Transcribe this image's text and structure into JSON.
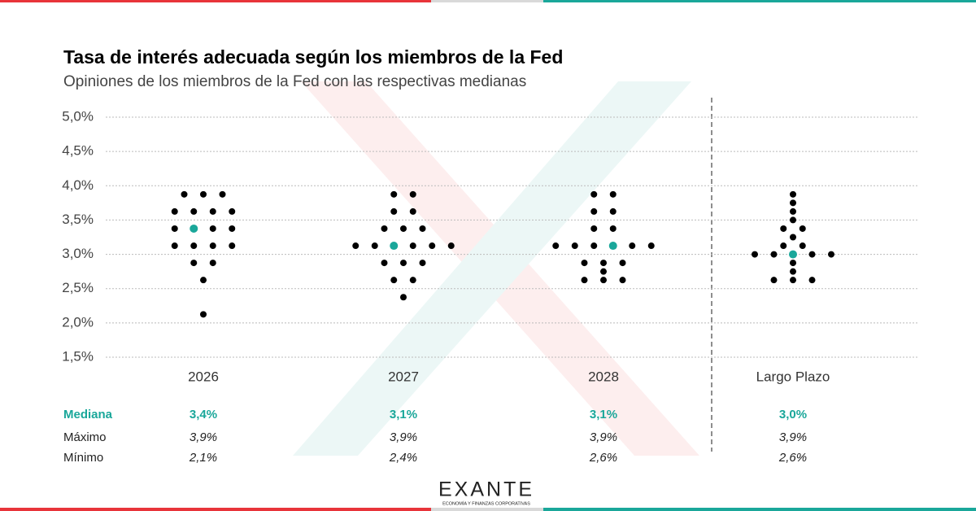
{
  "chart_data": {
    "type": "dotplot",
    "title": "Tasa de interés adecuada según los miembros de la Fed",
    "subtitle": "Opiniones de los miembros de la Fed con las respectivas medianas",
    "categories": [
      "2026",
      "2027",
      "2028",
      "Largo Plazo"
    ],
    "dot_color": "#000000",
    "highlight_color": "#1aa79a",
    "groups": [
      {
        "dots": [
          3.875,
          3.875,
          3.875,
          3.625,
          3.625,
          3.625,
          3.625,
          3.375,
          3.375,
          3.375,
          3.375,
          3.125,
          3.125,
          3.125,
          3.125,
          2.875,
          2.875,
          2.625,
          2.125
        ],
        "dot_colors": [
          "#000000",
          "#000000",
          "#000000",
          "#000000",
          "#000000",
          "#000000",
          "#000000",
          "#000000",
          "#1aa79a",
          "#000000",
          "#000000",
          "#000000",
          "#000000",
          "#000000",
          "#000000",
          "#000000",
          "#000000",
          "#000000",
          "#000000"
        ]
      },
      {
        "dots": [
          3.875,
          3.875,
          3.625,
          3.625,
          3.375,
          3.375,
          3.375,
          3.125,
          3.125,
          3.125,
          3.125,
          3.125,
          3.125,
          2.875,
          2.875,
          2.875,
          2.625,
          2.625,
          2.375
        ],
        "dot_colors": [
          "#000000",
          "#000000",
          "#000000",
          "#000000",
          "#000000",
          "#000000",
          "#000000",
          "#000000",
          "#000000",
          "#1aa79a",
          "#000000",
          "#000000",
          "#000000",
          "#000000",
          "#000000",
          "#000000",
          "#000000",
          "#000000",
          "#000000"
        ]
      },
      {
        "dots": [
          3.875,
          3.875,
          3.625,
          3.625,
          3.375,
          3.375,
          3.125,
          3.125,
          3.125,
          3.125,
          3.125,
          3.125,
          2.875,
          2.875,
          2.875,
          2.75,
          2.625,
          2.625,
          2.625
        ],
        "dot_colors": [
          "#000000",
          "#000000",
          "#000000",
          "#000000",
          "#000000",
          "#000000",
          "#000000",
          "#000000",
          "#000000",
          "#1aa79a",
          "#000000",
          "#000000",
          "#000000",
          "#000000",
          "#000000",
          "#000000",
          "#000000",
          "#000000",
          "#000000"
        ]
      },
      {
        "dots": [
          3.875,
          3.75,
          3.625,
          3.5,
          3.375,
          3.375,
          3.25,
          3.125,
          3.125,
          3.0,
          3.0,
          3.0,
          3.0,
          3.0,
          2.875,
          2.75,
          2.625,
          2.625,
          2.625
        ],
        "dot_colors": [
          "#000000",
          "#000000",
          "#000000",
          "#000000",
          "#000000",
          "#000000",
          "#000000",
          "#000000",
          "#000000",
          "#000000",
          "#000000",
          "#1aa79a",
          "#000000",
          "#000000",
          "#000000",
          "#000000",
          "#000000",
          "#000000",
          "#000000"
        ]
      }
    ],
    "ylim": [
      1.5,
      5.0
    ],
    "yticks": [
      {
        "value": 1.5,
        "label": "1,5%"
      },
      {
        "value": 2.0,
        "label": "2,0%"
      },
      {
        "value": 2.5,
        "label": "2,5%"
      },
      {
        "value": 3.0,
        "label": "3,0%"
      },
      {
        "value": 3.5,
        "label": "3,5%"
      },
      {
        "value": 4.0,
        "label": "4,0%"
      },
      {
        "value": 4.5,
        "label": "4,5%"
      },
      {
        "value": 5.0,
        "label": "5,0%"
      }
    ],
    "grid": true,
    "table": [
      {
        "label": "Mediana",
        "values": [
          3.4,
          3.1,
          3.1,
          3.0
        ],
        "value_labels": [
          "3,4%",
          "3,1%",
          "3,1%",
          "3,0%"
        ]
      },
      {
        "label": "Máximo",
        "values": [
          3.9,
          3.9,
          3.9,
          3.9
        ],
        "value_labels": [
          "3,9%",
          "3,9%",
          "3,9%",
          "3,9%"
        ]
      },
      {
        "label": "Mínimo",
        "values": [
          2.1,
          2.4,
          2.6,
          2.6
        ],
        "value_labels": [
          "2,1%",
          "2,4%",
          "2,6%",
          "2,6%"
        ]
      }
    ]
  },
  "logo": {
    "name": "EXANTE",
    "tagline": "ECONOMÍA Y FINANZAS CORPORATIVAS"
  }
}
